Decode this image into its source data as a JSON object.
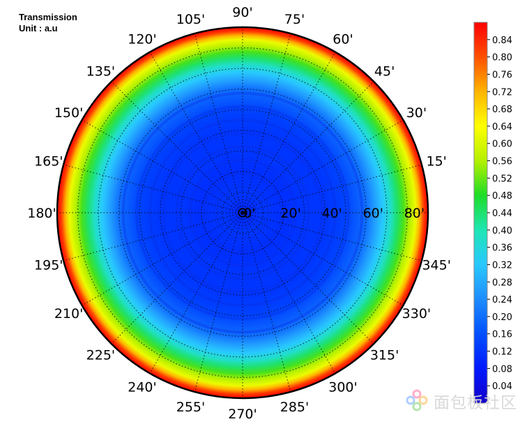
{
  "header": {
    "title": "Transmission",
    "unit": "Unit : a.u"
  },
  "chart_data": {
    "type": "heatmap",
    "projection": "polar",
    "quantity": "Transmission",
    "unit": "a.u",
    "angular_ticks": [
      "0'",
      "15'",
      "30'",
      "45'",
      "60'",
      "75'",
      "90'",
      "105'",
      "120'",
      "135'",
      "150'",
      "165'",
      "180'",
      "195'",
      "210'",
      "225'",
      "240'",
      "255'",
      "270'",
      "285'",
      "300'",
      "315'",
      "330'",
      "345'"
    ],
    "angular_tick_values": [
      0,
      15,
      30,
      45,
      60,
      75,
      90,
      105,
      120,
      135,
      150,
      165,
      180,
      195,
      210,
      225,
      240,
      255,
      270,
      285,
      300,
      315,
      330,
      345
    ],
    "radial_ticks": [
      "0'",
      "20'",
      "40'",
      "60'",
      "80'"
    ],
    "radial_tick_values": [
      0,
      20,
      40,
      60,
      80
    ],
    "radial_range": [
      0,
      90
    ],
    "grid": true,
    "profile": {
      "r": [
        0,
        10,
        20,
        30,
        40,
        50,
        60,
        64,
        68,
        72,
        75,
        78,
        81,
        84,
        86,
        88,
        90
      ],
      "value": [
        0.1,
        0.12,
        0.11,
        0.12,
        0.12,
        0.14,
        0.2,
        0.26,
        0.32,
        0.38,
        0.44,
        0.5,
        0.56,
        0.62,
        0.72,
        0.82,
        0.88
      ]
    },
    "colorbar": {
      "ticks": [
        "0.84",
        "0.80",
        "0.76",
        "0.72",
        "0.68",
        "0.64",
        "0.60",
        "0.56",
        "0.52",
        "0.48",
        "0.44",
        "0.40",
        "0.36",
        "0.32",
        "0.28",
        "0.24",
        "0.20",
        "0.16",
        "0.12",
        "0.08",
        "0.04"
      ],
      "tick_values": [
        0.84,
        0.8,
        0.76,
        0.72,
        0.68,
        0.64,
        0.6,
        0.56,
        0.52,
        0.48,
        0.44,
        0.4,
        0.36,
        0.32,
        0.28,
        0.24,
        0.2,
        0.16,
        0.12,
        0.08,
        0.04
      ],
      "range": [
        0.0,
        0.88
      ],
      "colors": [
        "#1400c8",
        "#0019ff",
        "#0050ff",
        "#1e8cff",
        "#28c8ff",
        "#1ee6b4",
        "#1edc28",
        "#b4f000",
        "#ffff00",
        "#ffb400",
        "#ff5000",
        "#ff0000"
      ]
    }
  },
  "watermark": {
    "text": "面包板社区"
  }
}
